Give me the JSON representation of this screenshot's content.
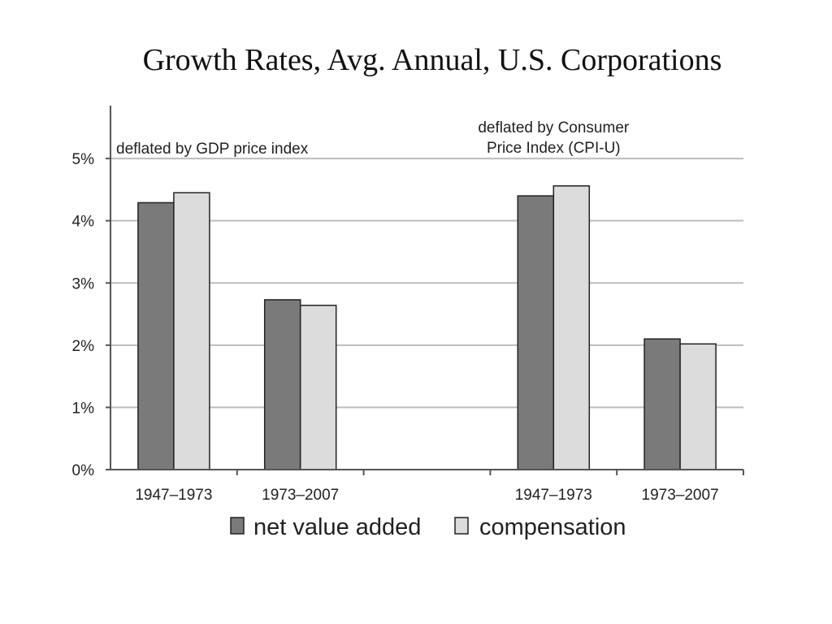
{
  "slide": {
    "title": "Growth Rates, Avg. Annual, U.S. Corporations"
  },
  "chart_data": {
    "type": "bar",
    "title": "Growth Rates, Avg. Annual, U.S. Corporations",
    "xlabel": "",
    "ylabel": "",
    "ylim": [
      0,
      5.85
    ],
    "y_ticks": [
      0,
      1,
      2,
      3,
      4,
      5
    ],
    "y_tick_labels": [
      "0%",
      "1%",
      "2%",
      "3%",
      "4%",
      "5%"
    ],
    "grid": true,
    "legend_position": "bottom",
    "categories": [
      "1947–1973",
      "1973–2007",
      "",
      "1947–1973",
      "1973–2007"
    ],
    "panel_labels": [
      {
        "lines": [
          "deflated by GDP price index"
        ],
        "align": "left",
        "group": 0
      },
      {
        "lines": [
          "deflated by Consumer",
          "Price Index (CPI-U)"
        ],
        "align": "center",
        "group": 3
      }
    ],
    "series": [
      {
        "name": "net value added",
        "color": "#7a7a7a",
        "values": [
          4.29,
          2.73,
          null,
          4.4,
          2.1
        ]
      },
      {
        "name": "compensation",
        "color": "#dcdcdc",
        "values": [
          4.45,
          2.64,
          null,
          4.56,
          2.02
        ]
      }
    ],
    "colors": {
      "grid": "#bdbdbd",
      "axis": "#555555",
      "bar_stroke": "#222222"
    }
  }
}
